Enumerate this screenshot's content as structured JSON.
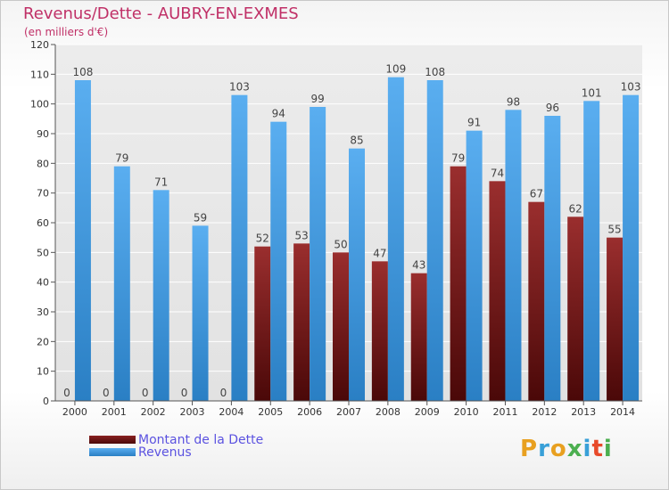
{
  "chart_data": {
    "type": "bar",
    "title": "Revenus/Dette - AUBRY-EN-EXMES",
    "subtitle": "(en milliers d'€)",
    "xlabel": "",
    "ylabel": "",
    "ylim": [
      0,
      120
    ],
    "yticks": [
      0,
      10,
      20,
      30,
      40,
      50,
      60,
      70,
      80,
      90,
      100,
      110,
      120
    ],
    "grid": true,
    "categories": [
      "2000",
      "2001",
      "2002",
      "2003",
      "2004",
      "2005",
      "2006",
      "2007",
      "2008",
      "2009",
      "2010",
      "2011",
      "2012",
      "2013",
      "2014"
    ],
    "series": [
      {
        "name": "Montant de la Dette",
        "color": "#7a1a1a",
        "values": [
          0,
          0,
          0,
          0,
          0,
          52,
          53,
          50,
          47,
          43,
          79,
          74,
          67,
          62,
          55
        ]
      },
      {
        "name": "Revenus",
        "color": "#3a9be0",
        "values": [
          108,
          79,
          71,
          59,
          103,
          94,
          99,
          85,
          109,
          108,
          91,
          98,
          96,
          101,
          103
        ]
      }
    ],
    "legend_position": "bottom-left"
  },
  "colors": {
    "title": "#c03067",
    "legend_text": "#5b52e0",
    "grid": "#ffffff",
    "plot_bg": "#e9e9e9"
  },
  "logo": {
    "letters": [
      "P",
      "r",
      "o",
      "x",
      "i",
      "t",
      "i"
    ],
    "colors": [
      "#e8a020",
      "#39a0d8",
      "#e8a020",
      "#4caf50",
      "#39a0d8",
      "#e84a2a",
      "#4caf50"
    ]
  }
}
